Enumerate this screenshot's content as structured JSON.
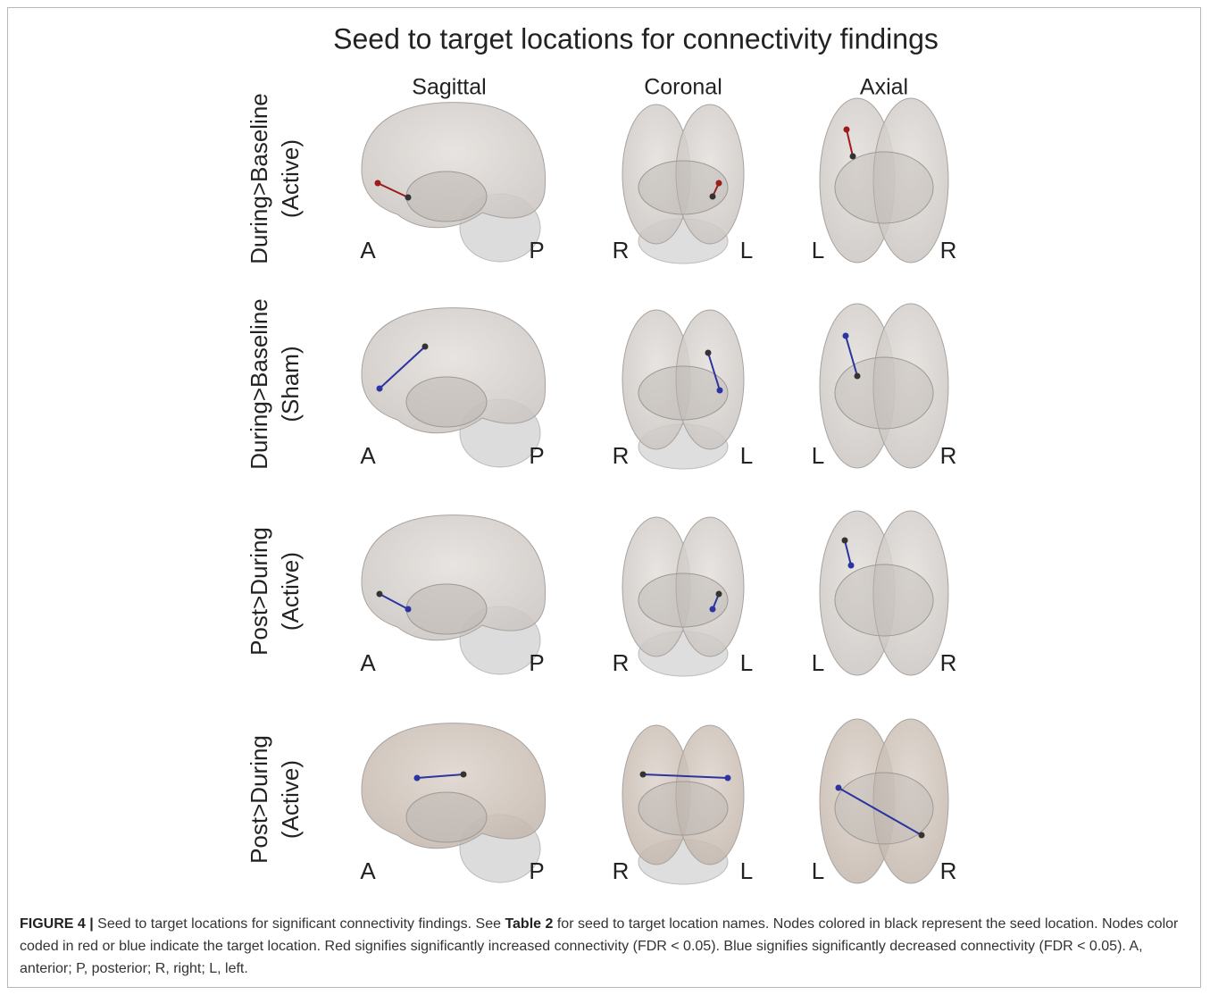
{
  "figure": {
    "title": "Seed to target locations for connectivity findings",
    "columns": [
      "Sagittal",
      "Coronal",
      "Axial"
    ],
    "rows": [
      [
        "During>Baseline",
        "(Active)"
      ],
      [
        "During>Baseline",
        "(Sham)"
      ],
      [
        "Post>During",
        "(Active)"
      ],
      [
        "Post>During",
        "(Active)"
      ]
    ],
    "orientation": [
      [
        "A",
        "P"
      ],
      [
        "R",
        "L"
      ],
      [
        "L",
        "R"
      ]
    ]
  },
  "caption": {
    "label": "FIGURE 4 |",
    "text_1": "Seed to target locations for significant connectivity findings. See",
    "bold": "Table 2",
    "text_2": "for seed to target location names. Nodes colored in black represent the seed location. Nodes color coded in red or blue indicate the target location. Red signifies significantly increased connectivity (FDR < 0.05). Blue signifies significantly decreased connectivity (FDR < 0.05). A, anterior; P, posterior; R, right; L, left."
  }
}
